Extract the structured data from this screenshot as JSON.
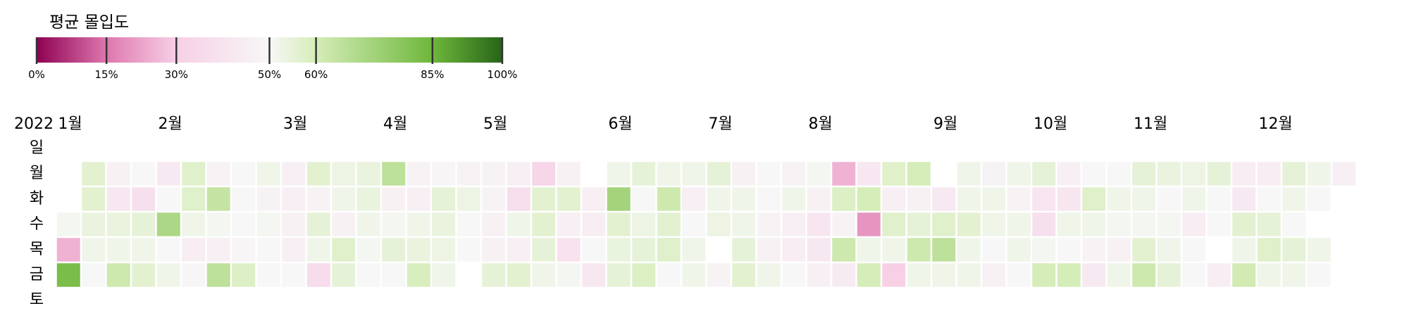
{
  "chart_data": {
    "type": "heatmap",
    "title": "평균 몰입도",
    "year": "2022",
    "weekdays": [
      "일",
      "월",
      "화",
      "수",
      "목",
      "금",
      "토"
    ],
    "months": [
      "1월",
      "2월",
      "3월",
      "4월",
      "5월",
      "6월",
      "7월",
      "8월",
      "9월",
      "10월",
      "11월",
      "12월"
    ],
    "legend": {
      "ticks": [
        "0%",
        "15%",
        "30%",
        "50%",
        "60%",
        "85%",
        "100%"
      ],
      "stops": [
        {
          "value": 0.0,
          "color": "#8e0152"
        },
        {
          "value": 0.15,
          "color": "#de77ae"
        },
        {
          "value": 0.3,
          "color": "#f7d0e6"
        },
        {
          "value": 0.5,
          "color": "#f7f7f7"
        },
        {
          "value": 0.6,
          "color": "#d5edb8"
        },
        {
          "value": 0.85,
          "color": "#6fb73b"
        },
        {
          "value": 1.0,
          "color": "#276419"
        }
      ]
    },
    "weeks": [
      [
        null,
        null,
        null,
        null,
        null,
        null,
        null
      ],
      [
        null,
        null,
        null,
        0.51,
        0.25,
        0.82,
        null
      ],
      [
        null,
        0.56,
        0.56,
        0.54,
        0.52,
        0.5,
        null
      ],
      [
        null,
        0.47,
        0.42,
        0.54,
        0.52,
        0.62,
        null
      ],
      [
        null,
        0.5,
        0.38,
        0.55,
        0.52,
        0.56,
        null
      ],
      [
        null,
        0.43,
        0.5,
        0.7,
        0.5,
        0.52,
        null
      ],
      [
        null,
        0.57,
        0.57,
        0.52,
        0.45,
        0.49,
        null
      ],
      [
        null,
        0.48,
        0.64,
        0.51,
        0.46,
        0.66,
        null
      ],
      [
        null,
        0.5,
        0.5,
        0.5,
        0.49,
        0.58,
        null
      ],
      [
        null,
        0.52,
        0.48,
        0.51,
        0.5,
        0.5,
        null
      ],
      [
        null,
        0.46,
        0.46,
        0.47,
        0.46,
        0.5,
        null
      ],
      [
        null,
        0.56,
        0.48,
        0.55,
        0.52,
        0.36,
        null
      ],
      [
        null,
        0.53,
        0.52,
        0.47,
        0.57,
        0.55,
        null
      ],
      [
        null,
        0.54,
        0.54,
        0.52,
        0.51,
        0.5,
        null
      ],
      [
        null,
        0.66,
        0.47,
        0.51,
        0.55,
        0.5,
        null
      ],
      [
        null,
        0.48,
        0.46,
        0.52,
        0.54,
        0.59,
        null
      ],
      [
        null,
        0.49,
        0.55,
        0.54,
        0.53,
        0.52,
        null
      ],
      [
        null,
        0.48,
        0.53,
        0.5,
        0.5,
        null,
        null
      ],
      [
        null,
        0.48,
        0.48,
        0.47,
        0.47,
        0.55,
        null
      ],
      [
        null,
        0.46,
        0.37,
        0.52,
        0.46,
        0.56,
        null
      ],
      [
        null,
        0.33,
        0.56,
        0.56,
        0.55,
        0.52,
        null
      ],
      [
        null,
        0.47,
        0.56,
        0.46,
        0.39,
        0.51,
        null
      ],
      [
        null,
        null,
        0.46,
        0.45,
        0.5,
        0.42,
        null
      ],
      [
        null,
        0.52,
        0.72,
        0.56,
        0.54,
        0.55,
        null
      ],
      [
        null,
        0.55,
        0.5,
        0.53,
        0.55,
        0.58,
        null
      ],
      [
        null,
        0.52,
        0.62,
        0.56,
        0.57,
        0.5,
        null
      ],
      [
        null,
        0.52,
        0.46,
        0.5,
        0.52,
        0.52,
        null
      ],
      [
        null,
        0.55,
        0.52,
        0.53,
        null,
        0.48,
        null
      ],
      [
        null,
        0.47,
        0.52,
        0.52,
        0.55,
        0.56,
        null
      ],
      [
        null,
        0.5,
        0.5,
        0.48,
        0.47,
        0.52,
        null
      ],
      [
        null,
        0.48,
        0.52,
        0.46,
        0.45,
        0.5,
        null
      ],
      [
        null,
        0.51,
        0.47,
        0.41,
        0.42,
        0.46,
        null
      ],
      [
        null,
        0.25,
        0.58,
        0.48,
        0.62,
        0.44,
        null
      ],
      [
        null,
        0.42,
        0.6,
        0.2,
        0.52,
        0.6,
        null
      ],
      [
        null,
        0.57,
        0.46,
        0.57,
        0.52,
        0.3,
        null
      ],
      [
        null,
        0.6,
        0.47,
        0.55,
        0.62,
        0.52,
        null
      ],
      [
        null,
        null,
        0.43,
        0.57,
        0.66,
        0.52,
        null
      ],
      [
        null,
        0.52,
        0.52,
        0.56,
        0.52,
        0.52,
        null
      ],
      [
        null,
        0.48,
        0.52,
        0.52,
        0.5,
        0.47,
        null
      ],
      [
        null,
        0.52,
        0.48,
        0.52,
        0.52,
        0.5,
        null
      ],
      [
        null,
        0.55,
        0.41,
        0.38,
        0.51,
        0.6,
        null
      ],
      [
        null,
        0.46,
        0.41,
        0.52,
        0.5,
        0.6,
        null
      ],
      [
        null,
        0.5,
        0.57,
        0.52,
        0.48,
        0.43,
        null
      ],
      [
        null,
        0.5,
        0.52,
        0.51,
        0.47,
        0.52,
        null
      ],
      [
        null,
        0.55,
        0.52,
        0.51,
        0.56,
        0.62,
        null
      ],
      [
        null,
        0.54,
        0.5,
        0.51,
        0.52,
        0.55,
        null
      ],
      [
        null,
        0.53,
        0.52,
        0.45,
        0.5,
        0.5,
        null
      ],
      [
        null,
        0.55,
        0.5,
        0.5,
        null,
        0.45,
        null
      ],
      [
        null,
        0.45,
        0.43,
        0.56,
        0.52,
        0.61,
        null
      ],
      [
        null,
        0.45,
        0.5,
        0.55,
        0.57,
        0.52,
        null
      ],
      [
        null,
        0.55,
        0.52,
        0.5,
        0.55,
        0.52,
        null
      ],
      [
        null,
        0.52,
        0.5,
        null,
        0.52,
        0.5,
        null
      ],
      [
        null,
        0.46,
        null,
        null,
        null,
        null,
        null
      ]
    ]
  }
}
